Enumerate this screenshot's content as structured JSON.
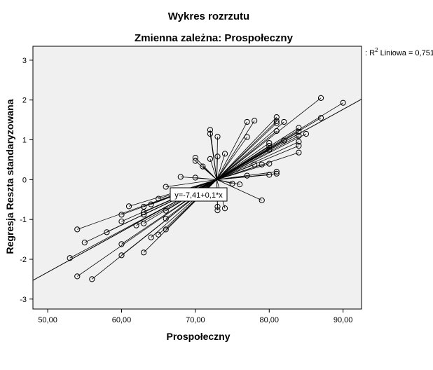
{
  "chart_data": {
    "type": "scatter",
    "title": "Wykres rozrzutu",
    "subtitle": "Zmienna zależna: Prospołeczny",
    "xlabel": "Prospołeczny",
    "ylabel": "Regresja Reszta standaryzowana",
    "xlim": [
      48,
      92.5
    ],
    "ylim": [
      -3.25,
      3.35
    ],
    "xticks": [
      50,
      60,
      70,
      80,
      90
    ],
    "xtick_labels": [
      "50,00",
      "60,00",
      "70,00",
      "80,00",
      "90,00"
    ],
    "yticks": [
      3,
      2,
      1,
      0,
      -1,
      -2,
      -3
    ],
    "ytick_labels": [
      "3",
      "2",
      "1",
      "0",
      "-1",
      "-2",
      "-3"
    ],
    "grid": false,
    "background": "#f0f0f0",
    "marker_color": "#000000",
    "centroid": {
      "x": 72.9,
      "y": 0.0
    },
    "fit_line": {
      "label": "R² Liniowa = 0,751",
      "label_base": "R",
      "label_sup": "2",
      "label_rest": " Liniowa = 0,751",
      "equation": "y=-7,41+0,1*x",
      "x1": 48,
      "y1": -2.53,
      "x2": 92.5,
      "y2": 2.02
    },
    "points": [
      [
        87,
        2.05
      ],
      [
        90,
        1.93
      ],
      [
        87,
        1.55
      ],
      [
        81,
        1.57
      ],
      [
        81,
        1.47
      ],
      [
        81,
        1.42
      ],
      [
        78,
        1.48
      ],
      [
        77,
        1.45
      ],
      [
        82,
        1.45
      ],
      [
        84,
        1.3
      ],
      [
        81,
        1.22
      ],
      [
        84,
        1.2
      ],
      [
        85,
        1.15
      ],
      [
        84,
        1.1
      ],
      [
        77,
        1.07
      ],
      [
        82,
        0.98
      ],
      [
        84,
        0.95
      ],
      [
        80,
        0.92
      ],
      [
        80,
        0.85
      ],
      [
        84,
        0.85
      ],
      [
        80,
        0.75
      ],
      [
        84,
        0.68
      ],
      [
        74,
        0.65
      ],
      [
        73,
        0.58
      ],
      [
        72,
        0.52
      ],
      [
        70,
        0.55
      ],
      [
        70,
        0.47
      ],
      [
        71,
        0.33
      ],
      [
        80,
        0.4
      ],
      [
        78,
        0.38
      ],
      [
        79,
        0.38
      ],
      [
        81,
        0.2
      ],
      [
        81,
        0.15
      ],
      [
        80,
        0.12
      ],
      [
        77,
        0.1
      ],
      [
        68,
        0.07
      ],
      [
        70,
        0.05
      ],
      [
        76,
        -0.12
      ],
      [
        75,
        -0.1
      ],
      [
        79,
        -0.52
      ],
      [
        66,
        -0.18
      ],
      [
        65,
        -0.48
      ],
      [
        61,
        -0.67
      ],
      [
        64,
        -0.62
      ],
      [
        63,
        -0.68
      ],
      [
        63,
        -0.82
      ],
      [
        60,
        -0.88
      ],
      [
        63,
        -0.88
      ],
      [
        60,
        -1.05
      ],
      [
        66,
        -0.78
      ],
      [
        66,
        -0.98
      ],
      [
        63,
        -1.1
      ],
      [
        62,
        -1.15
      ],
      [
        54,
        -1.25
      ],
      [
        58,
        -1.32
      ],
      [
        66,
        -1.25
      ],
      [
        65,
        -1.38
      ],
      [
        64,
        -1.45
      ],
      [
        55,
        -1.58
      ],
      [
        60,
        -1.62
      ],
      [
        63,
        -1.83
      ],
      [
        60,
        -1.9
      ],
      [
        53,
        -1.97
      ],
      [
        54,
        -2.43
      ],
      [
        56,
        -2.5
      ],
      [
        73,
        -0.68
      ],
      [
        73,
        -0.77
      ],
      [
        74,
        -0.72
      ],
      [
        72,
        1.25
      ],
      [
        72,
        1.15
      ],
      [
        73,
        1.08
      ]
    ]
  }
}
